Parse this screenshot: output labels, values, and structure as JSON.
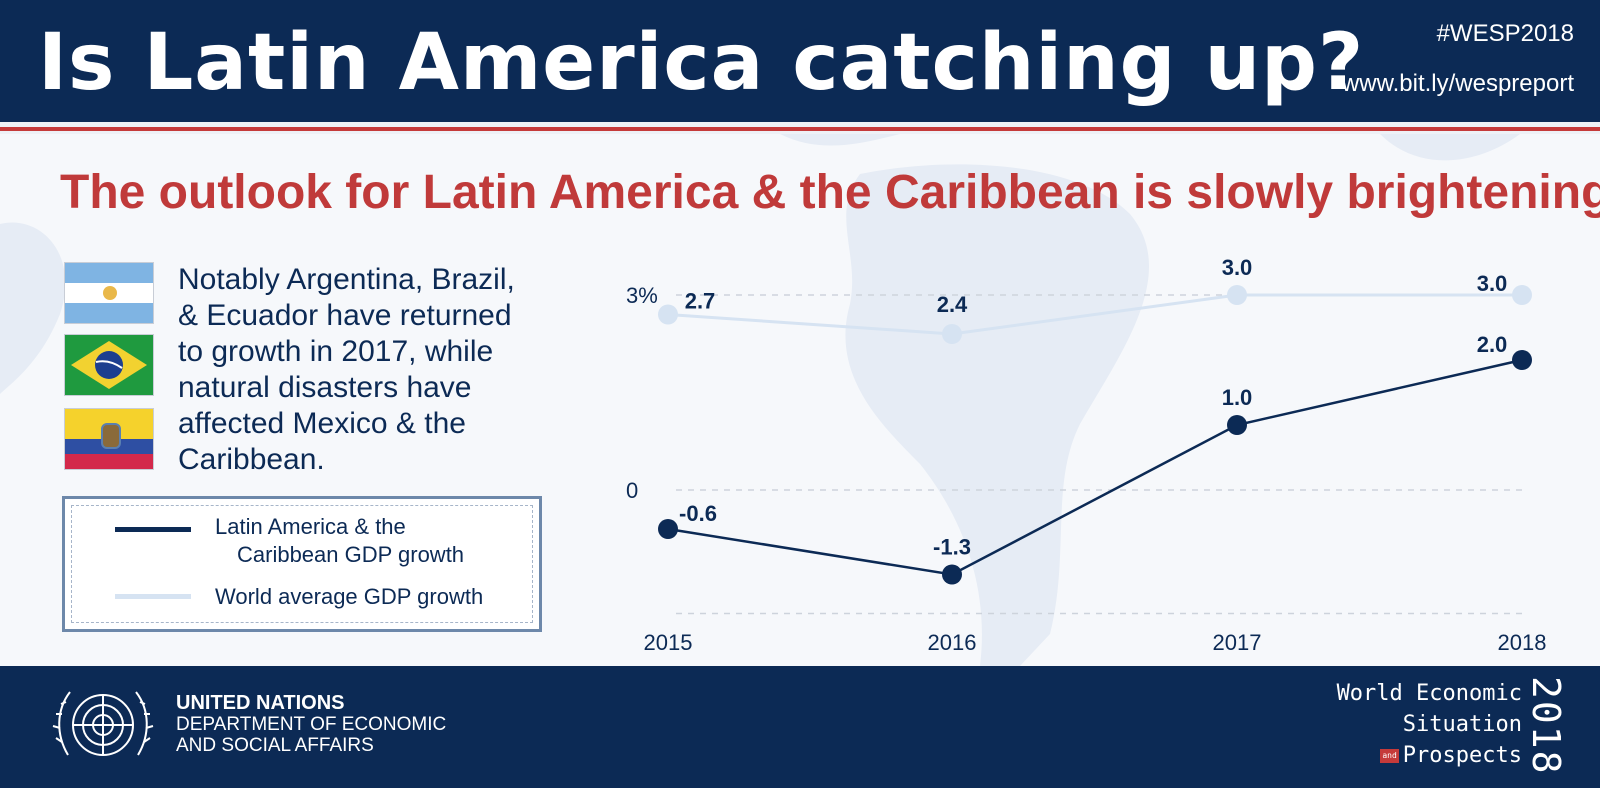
{
  "header": {
    "title": "Is Latin America catching up?",
    "hashtag": "#WESP2018",
    "url": "www.bit.ly/wespreport"
  },
  "subtitle": "The outlook for Latin America & the Caribbean is slowly brightening",
  "flags": [
    {
      "icon": "argentina-flag-icon"
    },
    {
      "icon": "brazil-flag-icon"
    },
    {
      "icon": "ecuador-flag-icon"
    }
  ],
  "description": "Notably Argentina, Brazil, & Ecuador have returned to growth in 2017, while natural disasters have affected Mexico & the Caribbean.",
  "legend": {
    "lac_line1": "Latin America & the",
    "lac_line2": "Caribbean GDP growth",
    "world": "World average GDP growth"
  },
  "chart_data": {
    "type": "line",
    "x": [
      "2015",
      "2016",
      "2017",
      "2018"
    ],
    "ytick_labels": [
      "3%",
      "0"
    ],
    "ylim": [
      -2.5,
      3.3
    ],
    "series": [
      {
        "name": "Latin America & the Caribbean GDP growth",
        "values": [
          -0.6,
          -1.3,
          1.0,
          2.0
        ],
        "labels": [
          "-0.6",
          "-1.3",
          "1.0",
          "2.0"
        ],
        "color": "#0c2a55"
      },
      {
        "name": "World average GDP growth",
        "values": [
          2.7,
          2.4,
          3.0,
          3.0
        ],
        "labels": [
          "2.7",
          "2.4",
          "3.0",
          "3.0"
        ],
        "color": "#d6e3f2"
      }
    ],
    "grid": true
  },
  "footer": {
    "un_line1": "UNITED NATIONS",
    "un_line2": "DEPARTMENT OF ECONOMIC",
    "un_line3": "AND SOCIAL AFFAIRS",
    "wesp_line1": "World Economic",
    "wesp_line2": "Situation",
    "wesp_and": "and",
    "wesp_line3": "Prospects",
    "wesp_year": "2018",
    "logo_icon": "un-emblem-icon"
  },
  "colors": {
    "navy": "#0c2a55",
    "red": "#c03a3a",
    "light_blue": "#d6e3f2"
  }
}
